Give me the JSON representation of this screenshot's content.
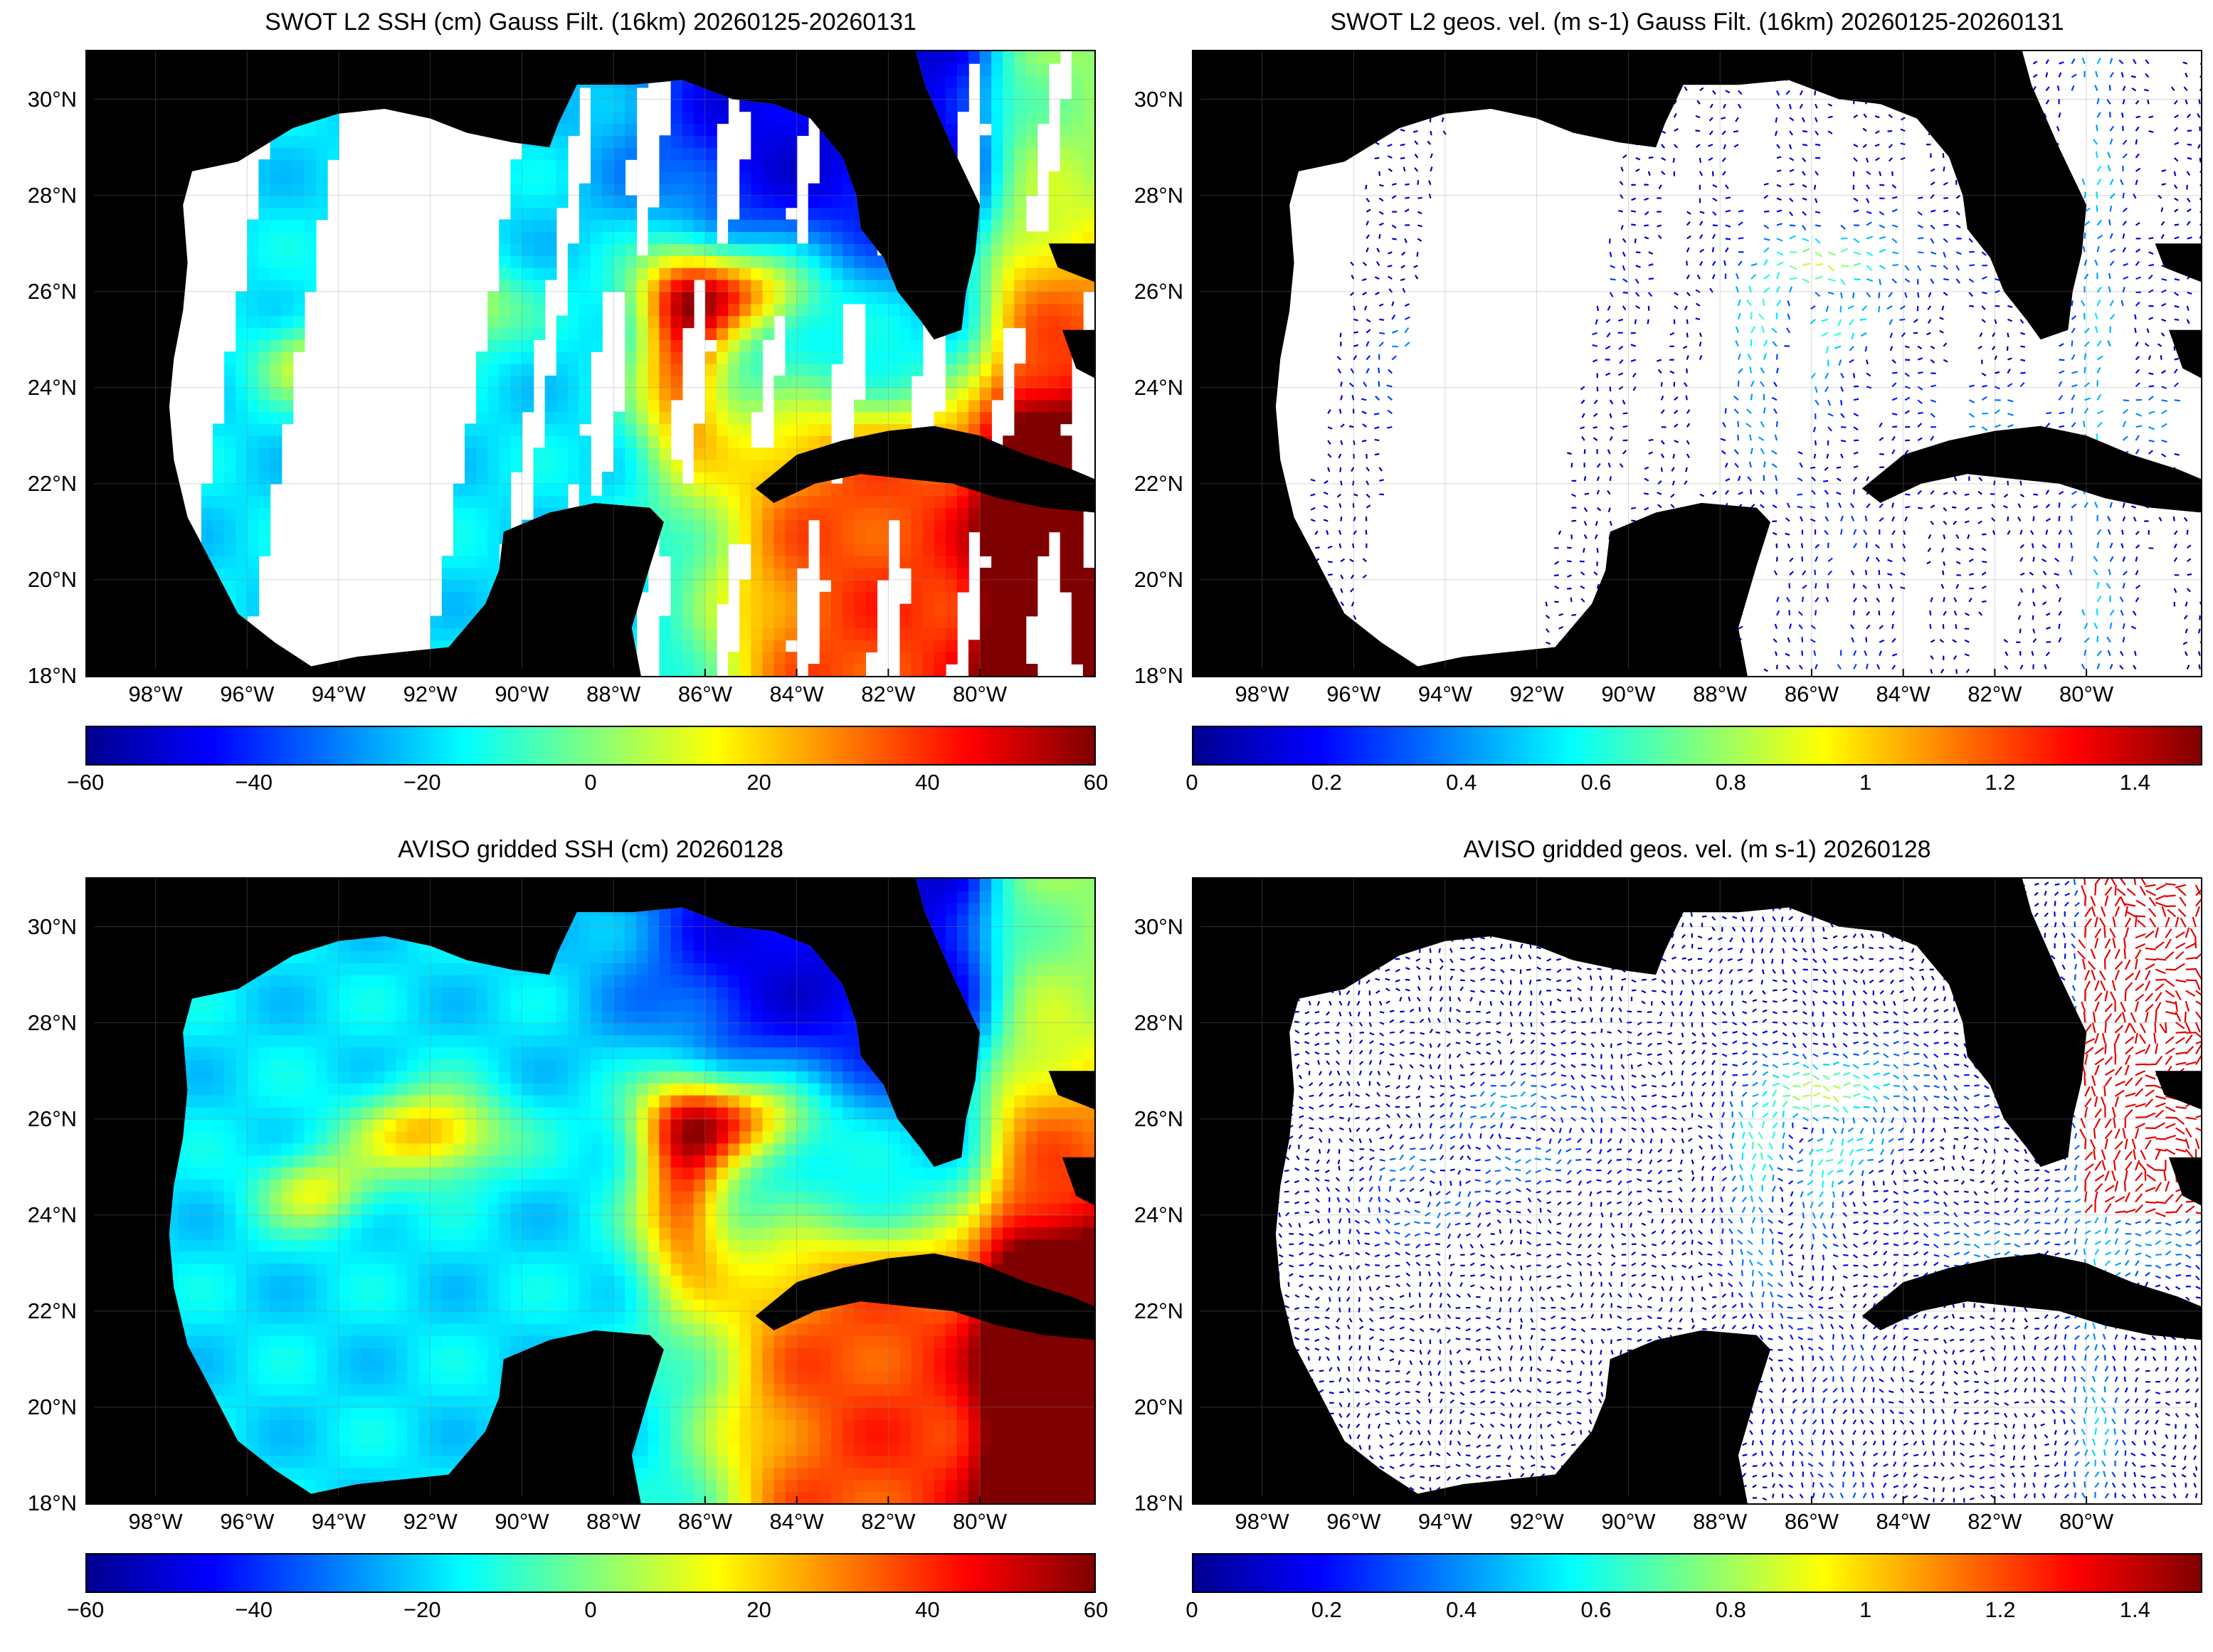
{
  "colormap": [
    "#00008f",
    "#0000ff",
    "#007fff",
    "#00ffff",
    "#7fff7f",
    "#ffff00",
    "#ff7f00",
    "#ff0000",
    "#7f0000"
  ],
  "lat_ticks": [
    "30°N",
    "28°N",
    "26°N",
    "24°N",
    "22°N",
    "20°N",
    "18°N"
  ],
  "lon_ticks": [
    "98°W",
    "96°W",
    "94°W",
    "92°W",
    "90°W",
    "88°W",
    "86°W",
    "84°W",
    "82°W",
    "80°W"
  ],
  "panels": [
    {
      "title": "SWOT L2 SSH (cm) Gauss Filt. (16km) 20260125-20260131",
      "kind": "ssh-swaths",
      "colorbar_labels": [
        "−60",
        "−40",
        "−20",
        "0",
        "20",
        "40",
        "60"
      ]
    },
    {
      "title": "SWOT L2 geos. vel. (m s-1) Gauss Filt. (16km) 20260125-20260131",
      "kind": "vel-swaths",
      "colorbar_labels": [
        "0",
        "0.2",
        "0.4",
        "0.6",
        "0.8",
        "1",
        "1.2",
        "1.4"
      ]
    },
    {
      "title": "AVISO gridded SSH (cm) 20260128",
      "kind": "ssh-grid",
      "colorbar_labels": [
        "−60",
        "−40",
        "−20",
        "0",
        "20",
        "40",
        "60"
      ]
    },
    {
      "title": "AVISO gridded geos. vel. (m s-1)  20260128",
      "kind": "vel-grid",
      "colorbar_labels": [
        "0",
        "0.2",
        "0.4",
        "0.6",
        "0.8",
        "1",
        "1.2",
        "1.4"
      ]
    }
  ]
}
